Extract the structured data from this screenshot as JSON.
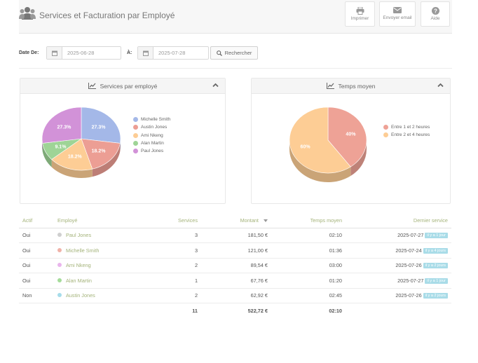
{
  "header": {
    "title": "Services et Facturation par Employé",
    "buttons": [
      {
        "label": "Imprimer",
        "icon": "printer-icon"
      },
      {
        "label": "Envoyer email",
        "icon": "envelope-icon"
      },
      {
        "label": "Aide",
        "icon": "help-icon"
      }
    ]
  },
  "filter": {
    "from_label": "Date De:",
    "from_value": "2025-06-28",
    "to_label": "À:",
    "to_value": "2025-07-28",
    "search_label": "Rechercher"
  },
  "panels": {
    "services": {
      "title": "Services par employé",
      "chart_data": {
        "type": "pie",
        "title": "Services par employé",
        "categories": [
          "Michelle Smith",
          "Austin Jones",
          "Ami Nkeng",
          "Alan Martin",
          "Paul Jones"
        ],
        "values": [
          27.3,
          18.2,
          18.2,
          9.1,
          27.3
        ],
        "labels": [
          "27.3%",
          "18.2%",
          "18.2%",
          "9.1%",
          "27.3%"
        ],
        "colors": [
          "#a4b8e8",
          "#ec9e94",
          "#fdcd95",
          "#9ed496",
          "#d292d8"
        ],
        "legend": "right"
      }
    },
    "avg_time": {
      "title": "Temps moyen",
      "chart_data": {
        "type": "pie",
        "title": "Temps moyen",
        "categories": [
          "Entre 1 et 2 heures",
          "Entre 2 et 4 heures"
        ],
        "values": [
          40,
          60
        ],
        "labels": [
          "40%",
          "60%"
        ],
        "colors": [
          "#eea296",
          "#fdcd95"
        ],
        "legend": "right"
      }
    }
  },
  "table": {
    "headers": [
      "Actif",
      "Employé",
      "Services",
      "Montant",
      "Temps moyen",
      "Dernier service"
    ],
    "rows": [
      {
        "actif": "Oui",
        "employe": "Paul Jones",
        "dot": "#cfcfcf",
        "services": "3",
        "montant": "181,50 €",
        "temps": "02:10",
        "date": "2025-07-27",
        "badge": "il y a 1 jour"
      },
      {
        "actif": "Oui",
        "employe": "Michelle Smith",
        "dot": "#f0b2a8",
        "services": "3",
        "montant": "121,00 €",
        "temps": "01:36",
        "date": "2025-07-24",
        "badge": "il y a 4 jours"
      },
      {
        "actif": "Oui",
        "employe": "Ami Nkeng",
        "dot": "#e9b5ec",
        "services": "2",
        "montant": "89,54 €",
        "temps": "03:00",
        "date": "2025-07-26",
        "badge": "il y a 2 jours"
      },
      {
        "actif": "Oui",
        "employe": "Alan Martin",
        "dot": "#a5dc9a",
        "services": "1",
        "montant": "67,76 €",
        "temps": "01:20",
        "date": "2025-07-27",
        "badge": "il y a 1 jour"
      },
      {
        "actif": "Non",
        "employe": "Austin Jones",
        "dot": "#a6dcea",
        "services": "2",
        "montant": "62,92 €",
        "temps": "02:45",
        "date": "2025-07-26",
        "badge": "il y a 2 jours"
      }
    ],
    "totals": {
      "services": "11",
      "montant": "522,72 €",
      "temps": "02:10"
    }
  }
}
